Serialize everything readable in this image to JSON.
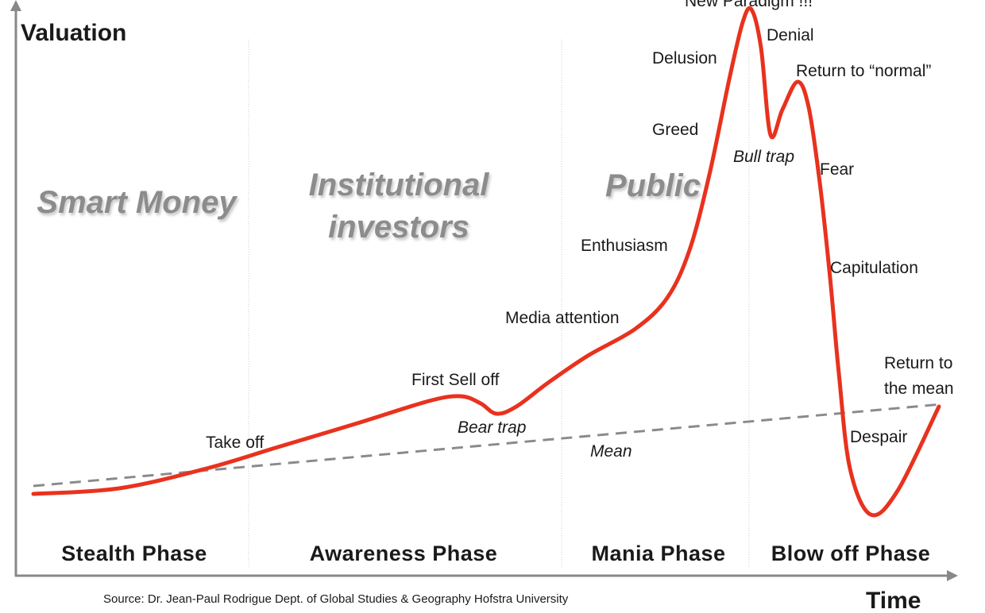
{
  "axes": {
    "y_label": "Valuation",
    "x_label": "Time"
  },
  "groups": {
    "smart_money": "Smart Money",
    "institutional": [
      "Institutional",
      "investors"
    ],
    "public": "Public"
  },
  "phases": [
    "Stealth Phase",
    "Awareness Phase",
    "Mania Phase",
    "Blow off Phase"
  ],
  "annotations": {
    "new_paradigm": "New Paradigm !!!",
    "denial": "Denial",
    "delusion": "Delusion",
    "return_to_normal": "Return to “normal”",
    "greed": "Greed",
    "bull_trap": "Bull trap",
    "fear": "Fear",
    "enthusiasm": "Enthusiasm",
    "capitulation": "Capitulation",
    "media_attention": "Media attention",
    "first_sell_off": "First Sell off",
    "bear_trap": "Bear trap",
    "take_off": "Take off",
    "mean": "Mean",
    "return_to_mean": [
      "Return to",
      "the mean"
    ],
    "despair": "Despair"
  },
  "source": "Source: Dr. Jean-Paul Rodrigue Dept. of Global Studies & Geography Hofstra University"
}
